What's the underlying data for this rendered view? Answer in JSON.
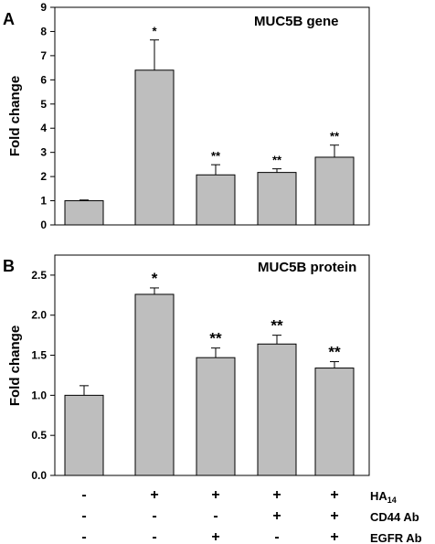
{
  "chart_data": [
    {
      "type": "bar",
      "panel": "A",
      "title": "MUC5B gene",
      "ylabel": "Fold change",
      "ylim": [
        0,
        9
      ],
      "yticks": [
        "0",
        "1",
        "2",
        "3",
        "4",
        "5",
        "6",
        "7",
        "8",
        "9"
      ],
      "values": [
        1.0,
        6.4,
        2.07,
        2.17,
        2.8
      ],
      "errors": [
        0.03,
        1.25,
        0.42,
        0.15,
        0.5
      ],
      "annotations": [
        "",
        "*",
        "**",
        "**",
        "**"
      ],
      "bar_color": "#bebebe"
    },
    {
      "type": "bar",
      "panel": "B",
      "title": "MUC5B protein",
      "ylabel": "Fold change",
      "ylim": [
        0,
        2.75
      ],
      "yticks": [
        "0.0",
        "0.5",
        "1.0",
        "1.5",
        "2.0",
        "2.5"
      ],
      "values": [
        1.0,
        2.26,
        1.47,
        1.64,
        1.34
      ],
      "errors": [
        0.12,
        0.08,
        0.12,
        0.11,
        0.08
      ],
      "annotations": [
        "",
        "*",
        "**",
        "**",
        "**"
      ],
      "bar_color": "#bebebe"
    }
  ],
  "conditions": {
    "rows": [
      {
        "label": "HA14",
        "label_main": "HA",
        "label_sub": "14",
        "values": [
          "-",
          "+",
          "+",
          "+",
          "+"
        ]
      },
      {
        "label": "CD44 Ab",
        "values": [
          "-",
          "-",
          "-",
          "+",
          "+"
        ]
      },
      {
        "label": "EGFR Ab",
        "values": [
          "-",
          "-",
          "+",
          "-",
          "+"
        ]
      }
    ]
  }
}
